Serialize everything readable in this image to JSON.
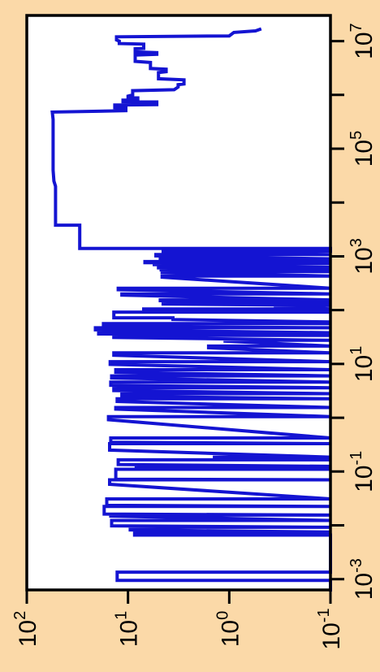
{
  "chart_data": {
    "type": "line",
    "orientation": "rotated-90",
    "title": "",
    "xlabel": "",
    "ylabel": "",
    "x_scale": "log",
    "y_scale": "log",
    "xlim": [
      0.00063,
      30000000
    ],
    "ylim": [
      0.1,
      100
    ],
    "grid": false,
    "legend": "none",
    "colors": {
      "background": "#fbd9a8",
      "plot_bg": "#ffffff",
      "series": "#1414d2",
      "axis": "#000000"
    },
    "x_tick_labels": [
      {
        "base": "10",
        "exp": "-3",
        "value": 0.001
      },
      {
        "base": "10",
        "exp": "-1",
        "value": 0.1
      },
      {
        "base": "10",
        "exp": "1",
        "value": 10
      },
      {
        "base": "10",
        "exp": "3",
        "value": 1000
      },
      {
        "base": "10",
        "exp": "5",
        "value": 100000
      },
      {
        "base": "10",
        "exp": "7",
        "value": 10000000
      }
    ],
    "x_minor_ticks": [
      0.01,
      1,
      100,
      10000,
      1000000
    ],
    "y_tick_labels": [
      {
        "base": "10",
        "exp": "2",
        "value": 100
      },
      {
        "base": "10",
        "exp": "1",
        "value": 10
      },
      {
        "base": "10",
        "exp": "0",
        "value": 1
      },
      {
        "base": "10",
        "exp": "-1",
        "value": 0.1
      }
    ],
    "series": [
      {
        "step": "hv",
        "points": [
          [
            0.00063,
            0.1
          ],
          [
            0.00095,
            0.1
          ],
          [
            0.00095,
            12.8
          ],
          [
            0.00135,
            12.8
          ],
          [
            0.00135,
            0.1
          ],
          [
            0.0066,
            0.1
          ],
          [
            0.0066,
            8.6
          ],
          [
            0.0075,
            8.6
          ],
          [
            0.0075,
            0.1
          ],
          [
            0.0082,
            9.5
          ],
          [
            0.0092,
            9.5
          ],
          [
            0.0092,
            0.1
          ],
          [
            0.0098,
            14.5
          ],
          [
            0.0123,
            14.5
          ],
          [
            0.0123,
            0.1
          ],
          [
            0.0148,
            14.8
          ],
          [
            0.0155,
            14.8
          ],
          [
            0.0155,
            0.1
          ],
          [
            0.0162,
            17.2
          ],
          [
            0.0225,
            17.2
          ],
          [
            0.0225,
            0.1
          ],
          [
            0.0235,
            16.2
          ],
          [
            0.031,
            16.2
          ],
          [
            0.031,
            0.1
          ],
          [
            0.058,
            15.2
          ],
          [
            0.07,
            15.2
          ],
          [
            0.07,
            0.1
          ],
          [
            0.072,
            13.2
          ],
          [
            0.11,
            13.2
          ],
          [
            0.11,
            0.1
          ],
          [
            0.115,
            8.3
          ],
          [
            0.125,
            8.3
          ],
          [
            0.125,
            0.1
          ],
          [
            0.135,
            12.5
          ],
          [
            0.165,
            12.5
          ],
          [
            0.165,
            0.1
          ],
          [
            0.172,
            1.4
          ],
          [
            0.185,
            1.4
          ],
          [
            0.185,
            0.1
          ],
          [
            0.25,
            15.2
          ],
          [
            0.33,
            15.2
          ],
          [
            0.33,
            0.1
          ],
          [
            0.35,
            14.8
          ],
          [
            0.42,
            14.8
          ],
          [
            0.42,
            0.1
          ],
          [
            0.92,
            15.6
          ],
          [
            1.05,
            15.6
          ],
          [
            1.05,
            0.1
          ],
          [
            1.45,
            13.2
          ],
          [
            1.55,
            13.2
          ],
          [
            1.55,
            0.1
          ],
          [
            2.0,
            12.8
          ],
          [
            2.25,
            12.8
          ],
          [
            2.25,
            0.1
          ],
          [
            2.5,
            11.5
          ],
          [
            2.8,
            11.5
          ],
          [
            2.8,
            0.1
          ],
          [
            3.2,
            13.8
          ],
          [
            3.6,
            13.8
          ],
          [
            3.6,
            0.1
          ],
          [
            4.0,
            14.8
          ],
          [
            4.6,
            14.8
          ],
          [
            4.6,
            0.1
          ],
          [
            5.5,
            14.5
          ],
          [
            6.0,
            14.5
          ],
          [
            6.0,
            0.1
          ],
          [
            7.0,
            13.2
          ],
          [
            7.8,
            13.2
          ],
          [
            7.8,
            0.1
          ],
          [
            9.8,
            15.0
          ],
          [
            11.0,
            15.0
          ],
          [
            11.0,
            0.1
          ],
          [
            14.5,
            13.8
          ],
          [
            16.0,
            13.8
          ],
          [
            16.0,
            0.1
          ],
          [
            20.0,
            1.6
          ],
          [
            21.5,
            1.6
          ],
          [
            21.5,
            0.1
          ],
          [
            26.5,
            1.1
          ],
          [
            27.5,
            1.1
          ],
          [
            27.5,
            0.1
          ],
          [
            31.0,
            13.8
          ],
          [
            34.0,
            13.8
          ],
          [
            34.0,
            0.1
          ],
          [
            36.0,
            19.5
          ],
          [
            38.0,
            19.5
          ],
          [
            38.0,
            0.1
          ],
          [
            43.0,
            21.0
          ],
          [
            47.0,
            21.0
          ],
          [
            47.0,
            0.1
          ],
          [
            50.0,
            17.5
          ],
          [
            56.0,
            17.5
          ],
          [
            56.0,
            0.1
          ],
          [
            58.0,
            0.47
          ],
          [
            60.0,
            0.47
          ],
          [
            60.0,
            0.1
          ],
          [
            67.0,
            3.6
          ],
          [
            72.0,
            3.6
          ],
          [
            72.0,
            13.8
          ],
          [
            92.0,
            13.8
          ],
          [
            92.0,
            0.1
          ],
          [
            100.0,
            7.0
          ],
          [
            105.0,
            7.0
          ],
          [
            105.0,
            0.1
          ],
          [
            118.0,
            0.35
          ],
          [
            122.0,
            0.35
          ],
          [
            122.0,
            0.1
          ],
          [
            130.0,
            4.5
          ],
          [
            138.0,
            4.5
          ],
          [
            138.0,
            0.1
          ],
          [
            150.0,
            4.8
          ],
          [
            155.0,
            4.8
          ],
          [
            155.0,
            0.1
          ],
          [
            190.0,
            11.5
          ],
          [
            200.0,
            11.5
          ],
          [
            200.0,
            0.1
          ],
          [
            240.0,
            12.5
          ],
          [
            255.0,
            12.5
          ],
          [
            255.0,
            0.1
          ],
          [
            410.0,
            4.6
          ],
          [
            430.0,
            4.6
          ],
          [
            430.0,
            0.1
          ],
          [
            500.0,
            4.6
          ],
          [
            520.0,
            4.6
          ],
          [
            520.0,
            0.1
          ],
          [
            560.0,
            4.7
          ],
          [
            580.0,
            4.7
          ],
          [
            580.0,
            0.1
          ],
          [
            610.0,
            5.0
          ],
          [
            630.0,
            5.0
          ],
          [
            630.0,
            0.1
          ],
          [
            700.0,
            5.5
          ],
          [
            740.0,
            5.5
          ],
          [
            740.0,
            0.1
          ],
          [
            760.0,
            6.8
          ],
          [
            800.0,
            6.8
          ],
          [
            800.0,
            0.1
          ],
          [
            860.0,
            4.8
          ],
          [
            900.0,
            4.8
          ],
          [
            900.0,
            0.1
          ],
          [
            1020.0,
            5.3
          ],
          [
            1080.0,
            5.3
          ],
          [
            1080.0,
            0.1
          ],
          [
            1180.0,
            4.5
          ],
          [
            1250.0,
            4.5
          ],
          [
            1250.0,
            0.1
          ],
          [
            1400.0,
            0.1
          ],
          [
            1400.0,
            30.0
          ],
          [
            3800.0,
            30.0
          ],
          [
            3800.0,
            52.0
          ],
          [
            20000.0,
            52.0
          ],
          [
            25000.0,
            54.0
          ],
          [
            40000.0,
            55.0
          ],
          [
            100000.0,
            55.0
          ],
          [
            200000.0,
            55.0
          ],
          [
            350000.0,
            55.0
          ],
          [
            480000.0,
            56.0
          ],
          [
            510000.0,
            10.5
          ],
          [
            570000.0,
            10.5
          ],
          [
            580000.0,
            13.5
          ],
          [
            650000.0,
            13.5
          ],
          [
            660000.0,
            5.2
          ],
          [
            740000.0,
            5.2
          ],
          [
            750000.0,
            11.2
          ],
          [
            800000.0,
            11.2
          ],
          [
            810000.0,
            8.0
          ],
          [
            880000.0,
            8.0
          ],
          [
            890000.0,
            10.0
          ],
          [
            950000.0,
            10.0
          ],
          [
            1000000.0,
            9.0
          ],
          [
            1200000.0,
            9.0
          ],
          [
            1250000.0,
            3.5
          ],
          [
            1400000.0,
            3.2
          ],
          [
            1550000.0,
            3.2
          ],
          [
            1600000.0,
            2.8
          ],
          [
            1900000.0,
            2.8
          ],
          [
            2000000.0,
            5.0
          ],
          [
            2600000.0,
            5.0
          ],
          [
            2700000.0,
            4.2
          ],
          [
            3000000.0,
            4.2
          ],
          [
            3100000.0,
            6.0
          ],
          [
            4000000.0,
            6.0
          ],
          [
            4200000.0,
            8.5
          ],
          [
            5500000.0,
            8.5
          ],
          [
            5700000.0,
            5.2
          ],
          [
            6100000.0,
            5.2
          ],
          [
            6300000.0,
            8.5
          ],
          [
            7200000.0,
            8.5
          ],
          [
            7300000.0,
            7.0
          ],
          [
            8800000.0,
            7.0
          ],
          [
            9000000.0,
            12.2
          ],
          [
            10000000.0,
            12.2
          ],
          [
            10500000.0,
            13.0
          ],
          [
            12000000.0,
            13.0
          ],
          [
            12500000.0,
            1.0
          ],
          [
            14500000.0,
            0.9
          ],
          [
            15500000.0,
            0.55
          ],
          [
            16500000.0,
            0.5
          ]
        ]
      }
    ]
  }
}
